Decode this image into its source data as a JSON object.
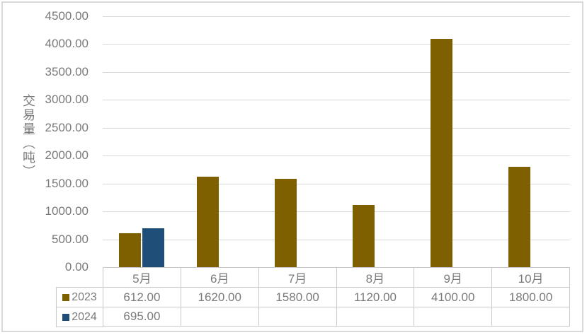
{
  "chart_data": {
    "type": "bar",
    "title": "",
    "ylabel": "交易量（吨）",
    "xlabel": "",
    "categories": [
      "5月",
      "6月",
      "7月",
      "8月",
      "9月",
      "10月"
    ],
    "series": [
      {
        "name": "2023",
        "color": "#7E6000",
        "values": [
          612,
          1620,
          1580,
          1120,
          4100,
          1800
        ]
      },
      {
        "name": "2024",
        "color": "#1F4E79",
        "values": [
          695,
          null,
          null,
          null,
          null,
          null
        ]
      }
    ],
    "ylim": [
      0,
      4500
    ],
    "ytick_step": 500,
    "ytick_labels": [
      "4500.00",
      "4000.00",
      "3500.00",
      "3000.00",
      "2500.00",
      "2000.00",
      "1500.00",
      "1000.00",
      "500.00",
      "0.00"
    ],
    "grid": true,
    "legend_position": "data-table-left",
    "data_table": {
      "rows": [
        {
          "label": "2023",
          "swatch_color": "#7E6000",
          "values": [
            "612.00",
            "1620.00",
            "1580.00",
            "1120.00",
            "4100.00",
            "1800.00"
          ]
        },
        {
          "label": "2024",
          "swatch_color": "#1F4E79",
          "values": [
            "695.00",
            "",
            "",
            "",
            "",
            ""
          ]
        }
      ]
    }
  },
  "colors": {
    "grid": "#D9D9D9",
    "frame": "#D9D9D9",
    "table_border": "#C9C9C9",
    "text": "#7A7A7A",
    "background": "#FFFFFF"
  }
}
